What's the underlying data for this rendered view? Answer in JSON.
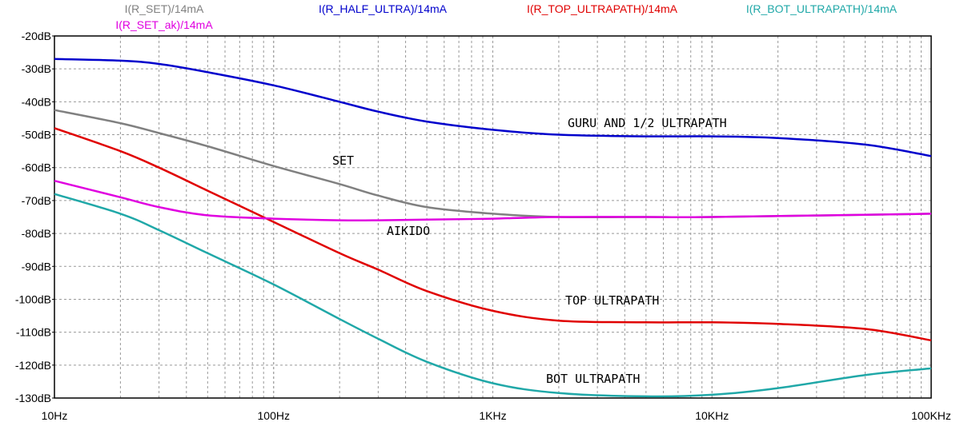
{
  "chart_data": {
    "type": "line",
    "x_scale": "log",
    "xlim": [
      10,
      100000
    ],
    "ylim": [
      -130,
      -20
    ],
    "grid": true,
    "y_ticks": [
      "-20dB",
      "-30dB",
      "-40dB",
      "-50dB",
      "-60dB",
      "-70dB",
      "-80dB",
      "-90dB",
      "-100dB",
      "-110dB",
      "-120dB",
      "-130dB"
    ],
    "x_ticks": [
      "10Hz",
      "100Hz",
      "1KHz",
      "10KHz",
      "100KHz"
    ],
    "x_tick_values": [
      10,
      100,
      1000,
      10000,
      100000
    ],
    "y_tick_values": [
      -20,
      -30,
      -40,
      -50,
      -60,
      -70,
      -80,
      -90,
      -100,
      -110,
      -120,
      -130
    ],
    "series": [
      {
        "name": "I(R_SET)/14mA",
        "color": "#808080",
        "x": [
          10,
          20,
          30,
          50,
          100,
          200,
          300,
          500,
          1000,
          2000,
          5000,
          10000,
          100000
        ],
        "y": [
          -42.5,
          -46.5,
          -49.5,
          -53.5,
          -59.5,
          -65,
          -68.5,
          -72,
          -74,
          -75,
          -75,
          -75,
          -74
        ]
      },
      {
        "name": "I(R_HALF_ULTRA)/14mA",
        "color": "#0000cc",
        "x": [
          10,
          20,
          30,
          50,
          100,
          200,
          300,
          500,
          1000,
          2000,
          5000,
          10000,
          20000,
          50000,
          100000
        ],
        "y": [
          -27,
          -27.5,
          -28.5,
          -31,
          -35,
          -40,
          -43,
          -46,
          -48.5,
          -50,
          -50.5,
          -50.5,
          -51,
          -53,
          -56.5
        ]
      },
      {
        "name": "I(R_TOP_ULTRAPATH)/14mA",
        "color": "#e00000",
        "x": [
          10,
          20,
          30,
          50,
          100,
          200,
          300,
          500,
          1000,
          2000,
          5000,
          10000,
          20000,
          50000,
          100000
        ],
        "y": [
          -48,
          -55,
          -60,
          -67,
          -76.5,
          -86,
          -91,
          -97.5,
          -103.5,
          -106.5,
          -107,
          -107,
          -107.5,
          -109,
          -112.5
        ]
      },
      {
        "name": "I(R_BOT_ULTRAPATH)/14mA",
        "color": "#20a8a8",
        "x": [
          10,
          20,
          30,
          50,
          100,
          200,
          300,
          500,
          1000,
          2000,
          5000,
          10000,
          20000,
          50000,
          100000
        ],
        "y": [
          -68,
          -74,
          -79,
          -86,
          -95.5,
          -106,
          -112,
          -119,
          -125.5,
          -128.5,
          -129.5,
          -129,
          -127,
          -123,
          -121
        ]
      },
      {
        "name": "I(R_SET_ak)/14mA",
        "color": "#e000e0",
        "x": [
          10,
          20,
          30,
          50,
          100,
          200,
          300,
          500,
          1000,
          2000,
          5000,
          10000,
          100000
        ],
        "y": [
          -64,
          -69,
          -72,
          -74.5,
          -75.5,
          -76,
          -76,
          -75.8,
          -75.5,
          -75,
          -75,
          -75,
          -74
        ]
      }
    ],
    "legend": [
      {
        "text": "I(R_SET)/14mA",
        "color": "#808080"
      },
      {
        "text": "I(R_SET_ak)/14mA",
        "color": "#e000e0"
      },
      {
        "text": "I(R_HALF_ULTRA)/14mA",
        "color": "#0000cc"
      },
      {
        "text": "I(R_TOP_ULTRAPATH)/14mA",
        "color": "#e00000"
      },
      {
        "text": "I(R_BOT_ULTRAPATH)/14mA",
        "color": "#20a8a8"
      }
    ],
    "annotations": [
      {
        "text": "GURU AND 1/2 ULTRAPATH",
        "x": 2000,
        "y": -50
      },
      {
        "text": "SET",
        "x": 200,
        "y": -60.5
      },
      {
        "text": "AIKIDO",
        "x": 400,
        "y": -79.5
      },
      {
        "text": "TOP ULTRAPATH",
        "x": 2000,
        "y": -103.5
      },
      {
        "text": "BOT ULTRAPATH",
        "x": 2000,
        "y": -124
      }
    ]
  }
}
